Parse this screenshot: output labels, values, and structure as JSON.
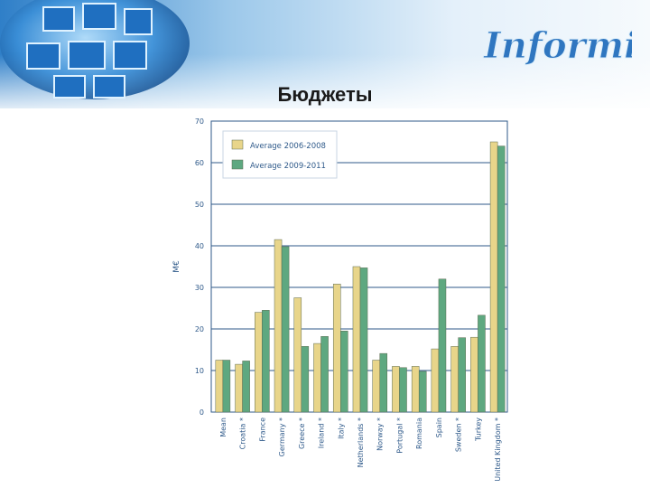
{
  "slide": {
    "title": "Бюджеты",
    "logo_text": "Informika"
  },
  "colors": {
    "series_1": "#e8d58a",
    "series_2": "#5ea880",
    "axis": "#2f5a8a",
    "grid": "#2f5a8a"
  },
  "chart_data": {
    "type": "bar",
    "ylabel": "M€",
    "ylim": [
      0,
      70
    ],
    "yticks": [
      0,
      10,
      20,
      30,
      40,
      50,
      60,
      70
    ],
    "grid": true,
    "legend_position": "top-left",
    "categories": [
      "Mean",
      "Croatia *",
      "France",
      "Germany *",
      "Greece *",
      "Ireland *",
      "Italy *",
      "Netherlands *",
      "Norway *",
      "Portugal *",
      "Romania",
      "Spain",
      "Sweden *",
      "Turkey",
      "United Kingdom *"
    ],
    "series": [
      {
        "name": "Average 2006-2008",
        "values": [
          12.5,
          11.5,
          24,
          41.5,
          27.5,
          16.5,
          30.8,
          35,
          12.5,
          11,
          11,
          15.2,
          15.8,
          18,
          65
        ]
      },
      {
        "name": "Average 2009-2011",
        "values": [
          12.5,
          12.3,
          24.5,
          39.8,
          15.8,
          18.2,
          19.5,
          34.7,
          14.1,
          10.7,
          9.8,
          32,
          17.9,
          23.3,
          64
        ]
      }
    ]
  }
}
